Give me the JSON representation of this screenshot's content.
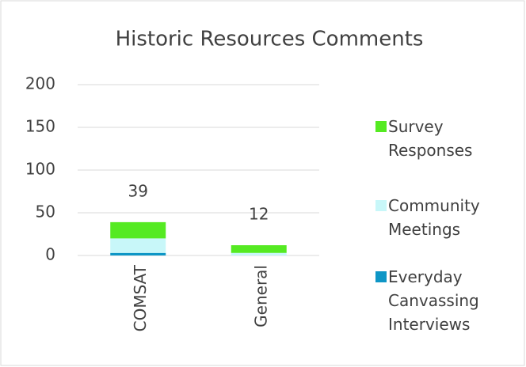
{
  "chart_data": {
    "type": "stacked_bar",
    "title": "Historic Resources Comments",
    "categories": [
      "COMSAT",
      "General"
    ],
    "series": [
      {
        "name": "Everyday Canvassing Interviews",
        "color": "#0e96c6",
        "values": [
          3,
          0
        ]
      },
      {
        "name": "Community Meetings",
        "color": "#c8f7f9",
        "values": [
          17,
          3
        ]
      },
      {
        "name": "Survey Responses",
        "color": "#55ea22",
        "values": [
          19,
          9
        ]
      }
    ],
    "totals": [
      39,
      12
    ],
    "ylim": [
      0,
      200
    ],
    "yticks": [
      0,
      50,
      100,
      150,
      200
    ],
    "grid": true,
    "legend": "right"
  }
}
